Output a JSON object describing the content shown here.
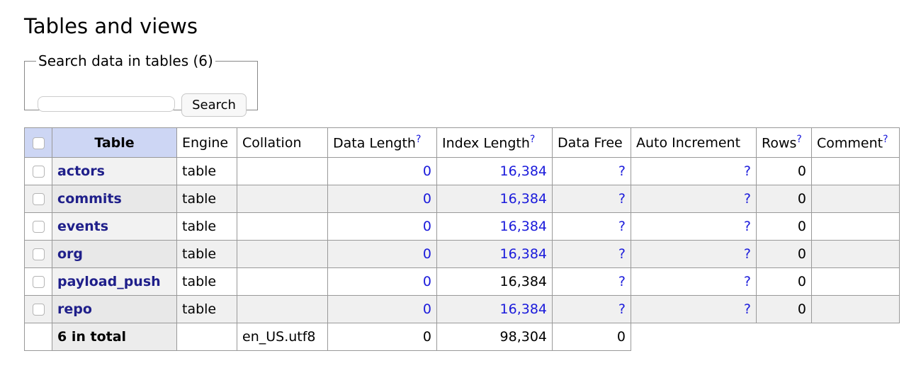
{
  "title": "Tables and views",
  "search": {
    "legend": "Search data in tables (6)",
    "input_value": "",
    "button_label": "Search"
  },
  "columns": {
    "table": "Table",
    "engine": "Engine",
    "collation": "Collation",
    "data_length": "Data Length",
    "index_length": "Index Length",
    "data_free": "Data Free",
    "auto_increment": "Auto Increment",
    "rows": "Rows",
    "comment": "Comment",
    "help_mark": "?"
  },
  "rows": [
    {
      "name": "actors",
      "engine": "table",
      "collation": "",
      "data_length": "0",
      "index_length": "16,384",
      "data_free": "?",
      "auto_increment": "?",
      "rows": "0",
      "comment": ""
    },
    {
      "name": "commits",
      "engine": "table",
      "collation": "",
      "data_length": "0",
      "index_length": "16,384",
      "data_free": "?",
      "auto_increment": "?",
      "rows": "0",
      "comment": ""
    },
    {
      "name": "events",
      "engine": "table",
      "collation": "",
      "data_length": "0",
      "index_length": "16,384",
      "data_free": "?",
      "auto_increment": "?",
      "rows": "0",
      "comment": ""
    },
    {
      "name": "org",
      "engine": "table",
      "collation": "",
      "data_length": "0",
      "index_length": "16,384",
      "data_free": "?",
      "auto_increment": "?",
      "rows": "0",
      "comment": ""
    },
    {
      "name": "payload_push",
      "engine": "table",
      "collation": "",
      "data_length": "0",
      "index_length": "16,384",
      "data_free": "?",
      "auto_increment": "?",
      "rows": "0",
      "comment": ""
    },
    {
      "name": "repo",
      "engine": "table",
      "collation": "",
      "data_length": "0",
      "index_length": "16,384",
      "data_free": "?",
      "auto_increment": "?",
      "rows": "0",
      "comment": ""
    }
  ],
  "total": {
    "label": "6 in total",
    "collation": "en_US.utf8",
    "data_length": "0",
    "index_length": "98,304",
    "data_free": "0"
  },
  "colors": {
    "header_accent": "#cdd6f4",
    "link": "#1a1adb",
    "table_name": "#1f1f8a"
  }
}
